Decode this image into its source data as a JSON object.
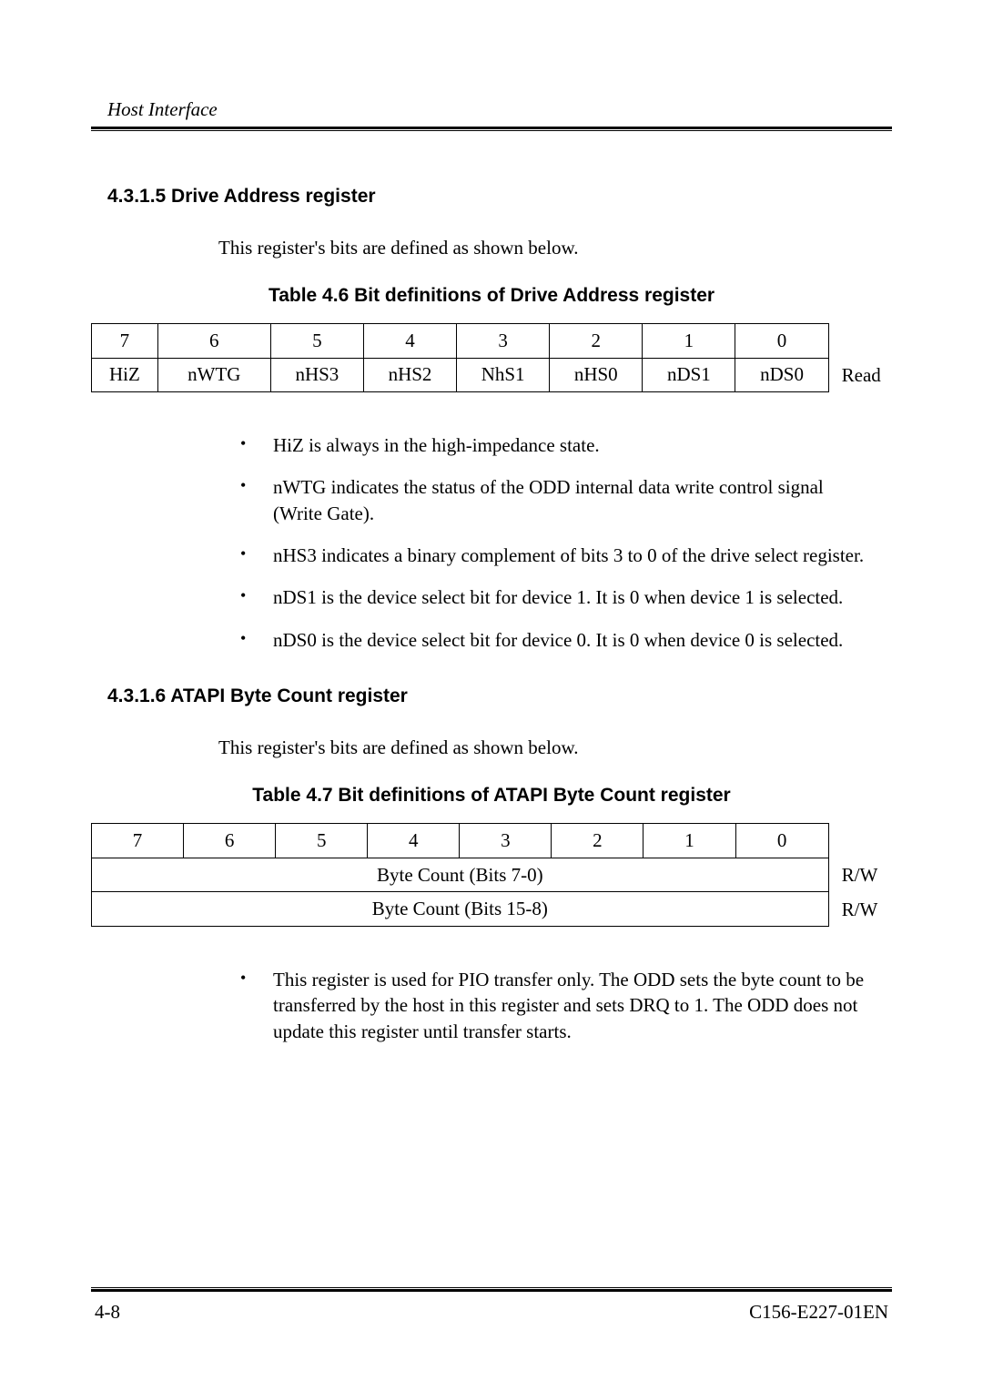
{
  "header": {
    "running_title": "Host Interface"
  },
  "section1": {
    "number_title": "4.3.1.5  Drive Address register",
    "intro": "This register's bits are defined as shown below.",
    "table_caption": "Table 4.6   Bit definitions of Drive Address register",
    "table": {
      "bit_numbers": [
        "7",
        "6",
        "5",
        "4",
        "3",
        "2",
        "1",
        "0"
      ],
      "bit_names": [
        "HiZ",
        "nWTG",
        "nHS3",
        "nHS2",
        "NhS1",
        "nHS0",
        "nDS1",
        "nDS0"
      ],
      "side_label": "Read",
      "col_count": 8,
      "border_color": "#000000",
      "font_size": 21
    },
    "bullets": [
      "HiZ is always in the high-impedance state.",
      "nWTG indicates the status of the ODD internal data write control signal (Write Gate).",
      "nHS3 indicates a binary complement of bits 3 to 0 of the drive select register.",
      "nDS1 is the device select bit for device 1.  It is 0 when device 1 is selected.",
      "nDS0 is the device select bit for device 0.  It is 0 when device 0 is selected."
    ]
  },
  "section2": {
    "number_title": "4.3.1.6  ATAPI Byte Count register",
    "intro": "This register's bits are defined as shown below.",
    "table_caption": "Table 4.7   Bit definitions of ATAPI Byte Count register",
    "table": {
      "bit_numbers": [
        "7",
        "6",
        "5",
        "4",
        "3",
        "2",
        "1",
        "0"
      ],
      "row1_label": "Byte Count (Bits 7-0)",
      "row1_side": "R/W",
      "row2_label": "Byte Count (Bits 15-8)",
      "row2_side": "R/W",
      "col_count": 8,
      "border_color": "#000000",
      "font_size": 21
    },
    "bullets": [
      "This register is used for PIO transfer only.  The ODD sets the byte count to be transferred by the host in this register and sets DRQ to 1.  The ODD does not update this register until transfer starts."
    ]
  },
  "footer": {
    "page_number": "4-8",
    "doc_id": "C156-E227-01EN"
  },
  "style": {
    "page_bg": "#ffffff",
    "text_color": "#000000",
    "heading_font": "Arial",
    "body_font": "Times New Roman"
  }
}
